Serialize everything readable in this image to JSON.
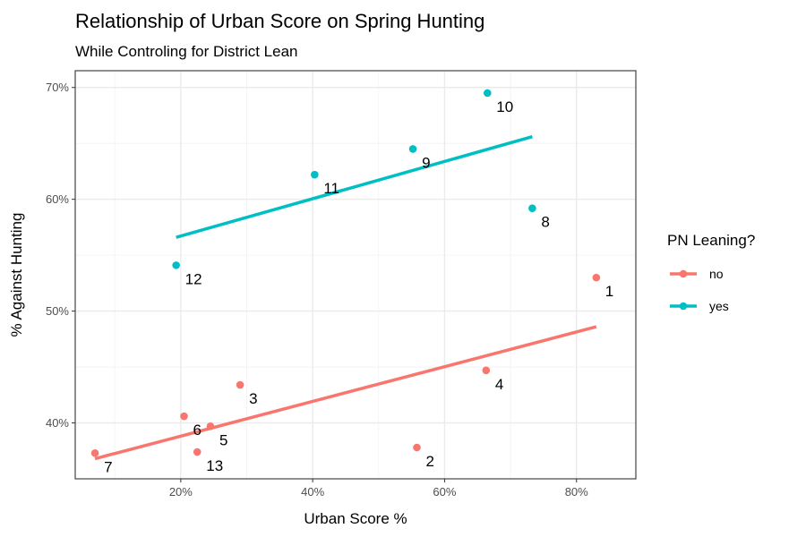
{
  "chart_data": {
    "type": "scatter",
    "title": "Relationship of Urban Score on Spring Hunting",
    "subtitle": "While Controling for District Lean",
    "xlabel": "Urban Score %",
    "ylabel": "% Against Hunting",
    "xlim": [
      0.04,
      0.89
    ],
    "ylim": [
      0.35,
      0.715
    ],
    "x_ticks": [
      0.2,
      0.4,
      0.6,
      0.8
    ],
    "x_tick_labels": [
      "20%",
      "40%",
      "60%",
      "80%"
    ],
    "y_ticks": [
      0.4,
      0.5,
      0.6,
      0.7
    ],
    "y_tick_labels": [
      "40%",
      "50%",
      "60%",
      "70%"
    ],
    "grid": true,
    "legend": {
      "title": "PN Leaning?",
      "placement": "right",
      "entries": [
        {
          "label": "no",
          "color": "#F8766D"
        },
        {
          "label": "yes",
          "color": "#00BFC4"
        }
      ]
    },
    "series": [
      {
        "name": "no",
        "color": "#F8766D",
        "points": [
          {
            "label": "1",
            "x": 0.83,
            "y": 0.53
          },
          {
            "label": "2",
            "x": 0.558,
            "y": 0.378
          },
          {
            "label": "3",
            "x": 0.29,
            "y": 0.434
          },
          {
            "label": "4",
            "x": 0.663,
            "y": 0.447
          },
          {
            "label": "5",
            "x": 0.245,
            "y": 0.397
          },
          {
            "label": "6",
            "x": 0.205,
            "y": 0.406
          },
          {
            "label": "7",
            "x": 0.07,
            "y": 0.373
          },
          {
            "label": "13",
            "x": 0.225,
            "y": 0.374
          }
        ],
        "fit": {
          "x": [
            0.07,
            0.83
          ],
          "y": [
            0.368,
            0.486
          ]
        }
      },
      {
        "name": "yes",
        "color": "#00BFC4",
        "points": [
          {
            "label": "8",
            "x": 0.733,
            "y": 0.592
          },
          {
            "label": "9",
            "x": 0.552,
            "y": 0.645
          },
          {
            "label": "10",
            "x": 0.665,
            "y": 0.695
          },
          {
            "label": "11",
            "x": 0.403,
            "y": 0.622
          },
          {
            "label": "12",
            "x": 0.193,
            "y": 0.541
          }
        ],
        "fit": {
          "x": [
            0.193,
            0.733
          ],
          "y": [
            0.566,
            0.656
          ]
        }
      }
    ]
  }
}
